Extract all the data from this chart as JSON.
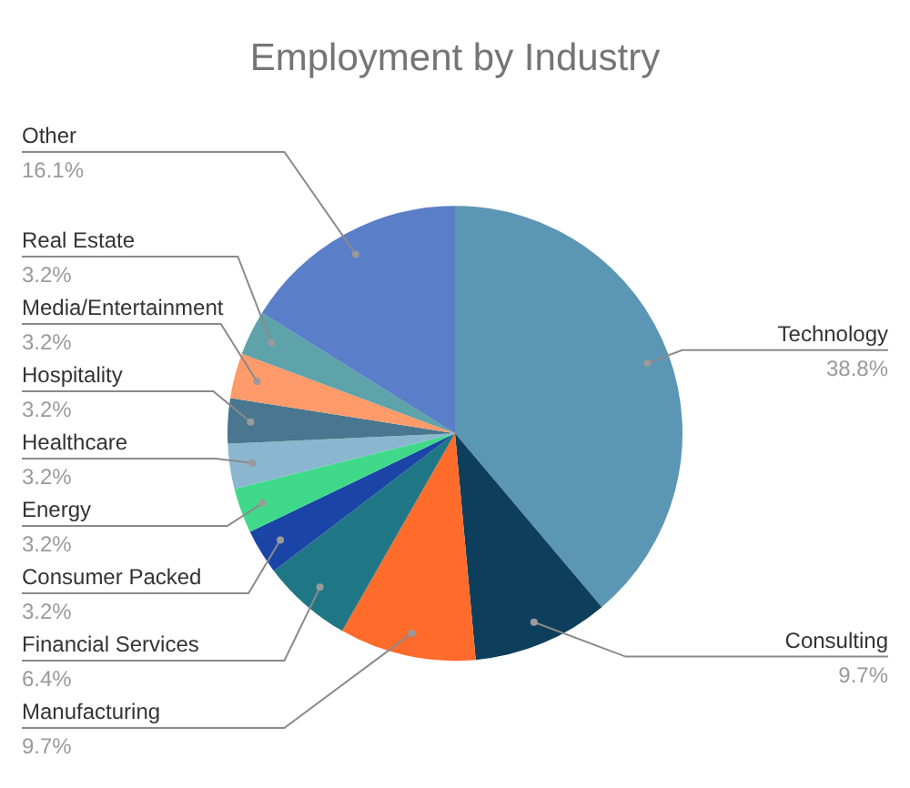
{
  "chart_data": {
    "type": "pie",
    "title": "Employment by Industry",
    "categories": [
      "Technology",
      "Consulting",
      "Manufacturing",
      "Financial Services",
      "Consumer Packed",
      "Energy",
      "Healthcare",
      "Hospitality",
      "Media/Entertainment",
      "Real Estate",
      "Other"
    ],
    "values": [
      38.8,
      9.7,
      9.7,
      6.4,
      3.2,
      3.2,
      3.2,
      3.2,
      3.2,
      3.2,
      16.1
    ],
    "value_labels": [
      "38.8%",
      "9.7%",
      "9.7%",
      "6.4%",
      "3.2%",
      "3.2%",
      "3.2%",
      "3.2%",
      "3.2%",
      "3.2%",
      "16.1%"
    ],
    "colors": [
      "#5b96b4",
      "#0d3f5c",
      "#ff6b2b",
      "#1f7785",
      "#1a45a6",
      "#40d98a",
      "#8ab7cf",
      "#48778f",
      "#ff9a6a",
      "#5ea2aa",
      "#5a7ec7"
    ],
    "legend": false
  }
}
